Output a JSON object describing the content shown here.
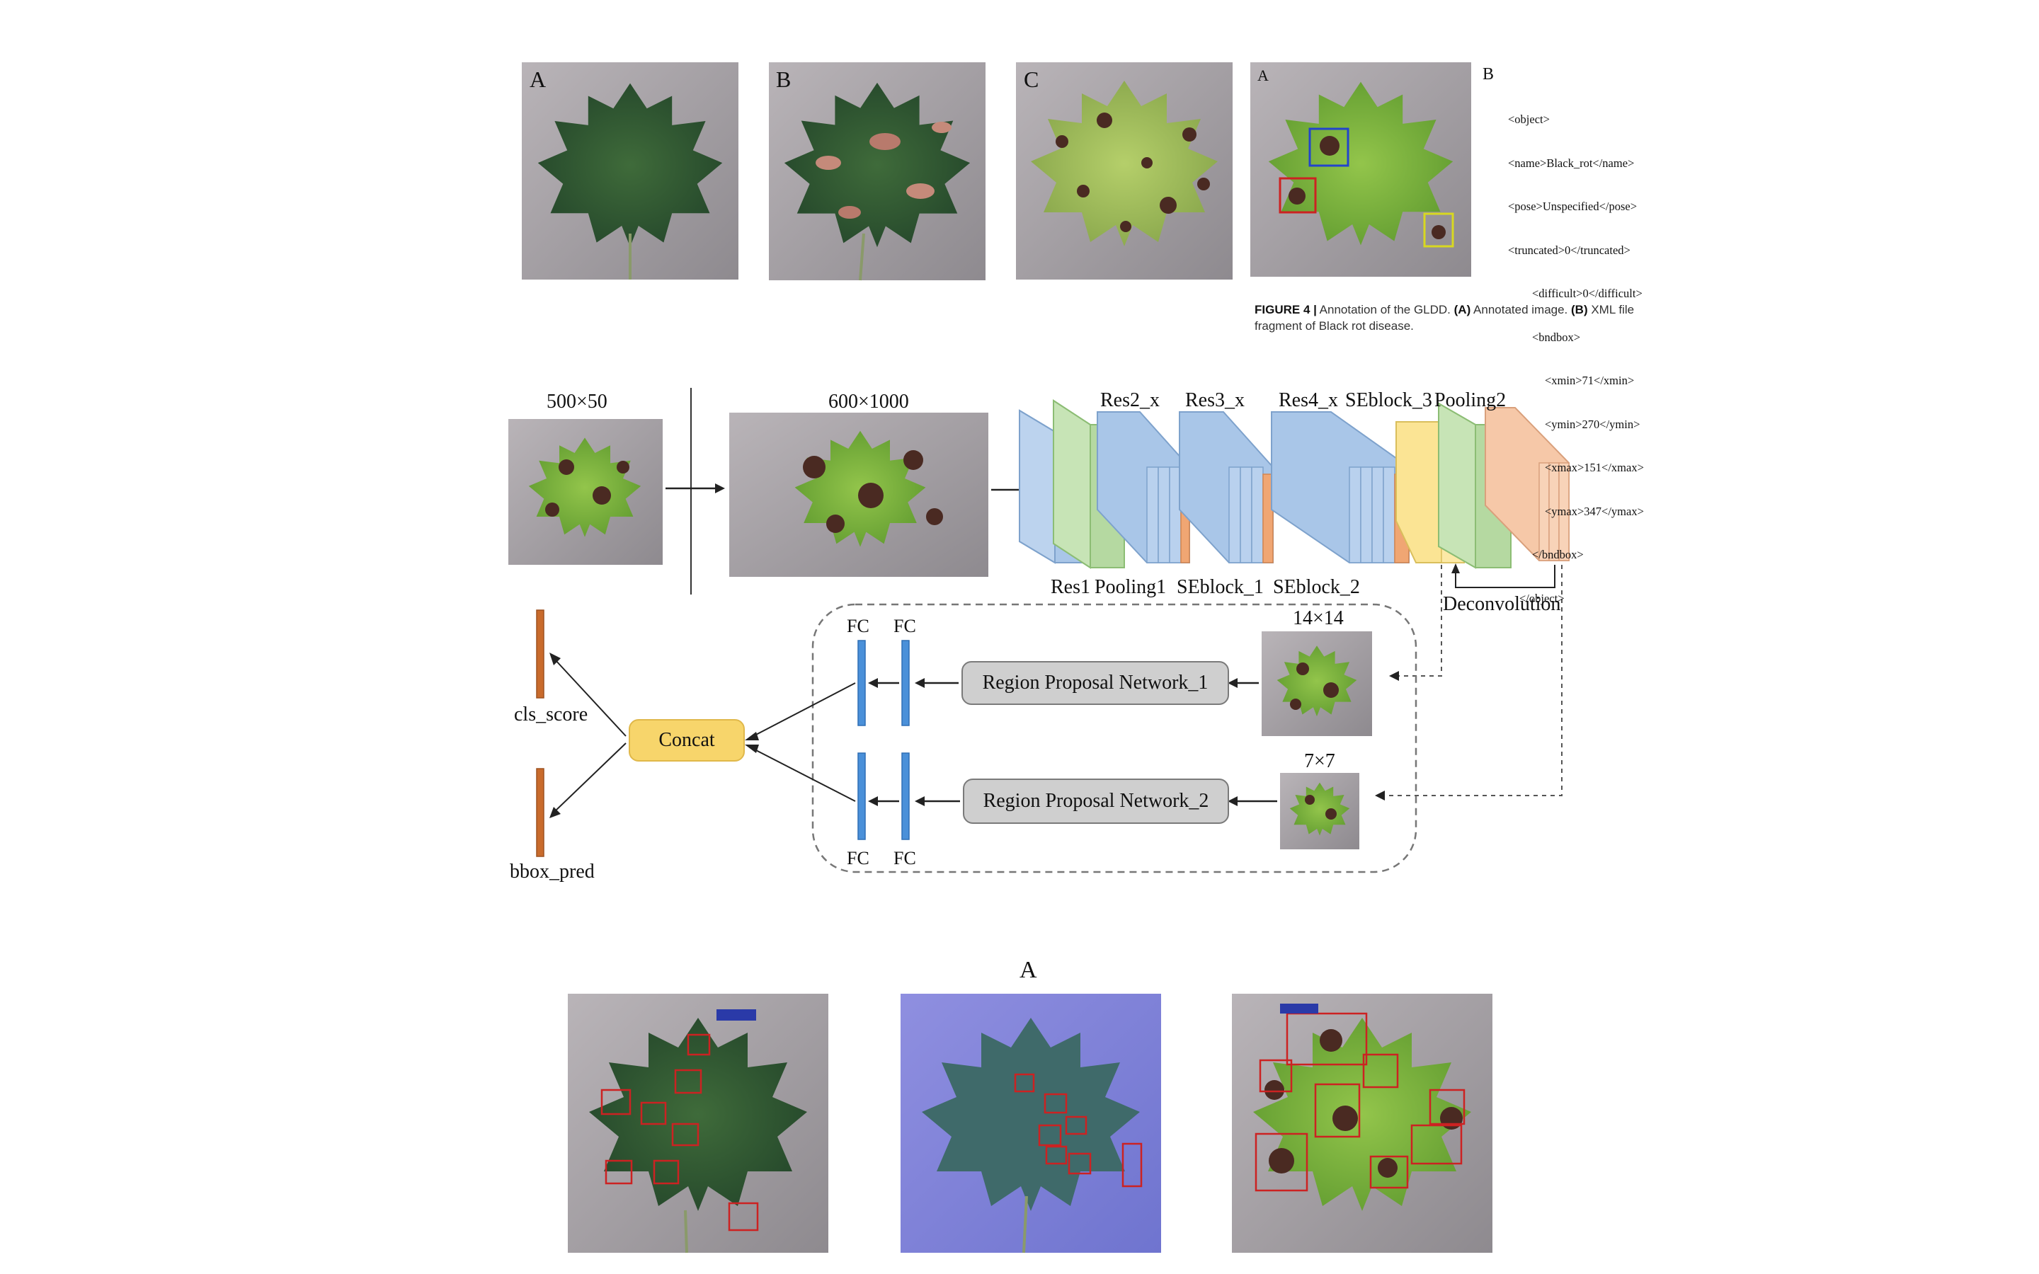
{
  "top_panels": {
    "letters": [
      "A",
      "B",
      "C",
      "A"
    ],
    "xml_letter": "B",
    "xml_lines": [
      "<object>",
      "<name>Black_rot</name>",
      "<pose>Unspecified</pose>",
      "<truncated>0</truncated>",
      "<difficult>0</difficult>",
      "<bndbox>",
      "<xmin>71</xmin>",
      "<ymin>270</ymin>",
      "<xmax>151</xmax>",
      "<ymax>347</ymax>",
      "</bndbox>",
      "</object>"
    ],
    "caption": {
      "figure": "FIGURE 4 |",
      "text1": " Annotation of the GLDD. ",
      "a_tag": "(A)",
      "text2": " Annotated image. ",
      "b_tag": "(B)",
      "text3": " XML file fragment of Black rot disease."
    }
  },
  "network": {
    "input_size": "500×50",
    "resized_size": "600×1000",
    "top_labels": [
      "Res2_x",
      "Res3_x",
      "Res4_x",
      "SEblock_3",
      "Pooling2"
    ],
    "bottom_labels": [
      "Res1",
      "Pooling1",
      "SEblock_1",
      "SEblock_2"
    ],
    "deconvolution": "Deconvolution",
    "size_14": "14×14",
    "size_7": "7×7",
    "rpn1": "Region Proposal Network_1",
    "rpn2": "Region Proposal Network_2",
    "fc": "FC",
    "concat": "Concat",
    "cls_score": "cls_score",
    "bbox_pred": "bbox_pred"
  },
  "bottom": {
    "panel_letter": "A"
  },
  "colors": {
    "leaf_green": "#4f7a3e",
    "leaf_light": "#8ab63f",
    "lesion": "#5a2e24",
    "blue_block": "#a9c6e8",
    "green_block": "#b5d9a1",
    "orange_block": "#f0a673",
    "yellow_block": "#fbe494",
    "peach_block": "#f6c8a8",
    "fc_bar": "#4a90d9",
    "out_bar": "#c96b2c"
  }
}
